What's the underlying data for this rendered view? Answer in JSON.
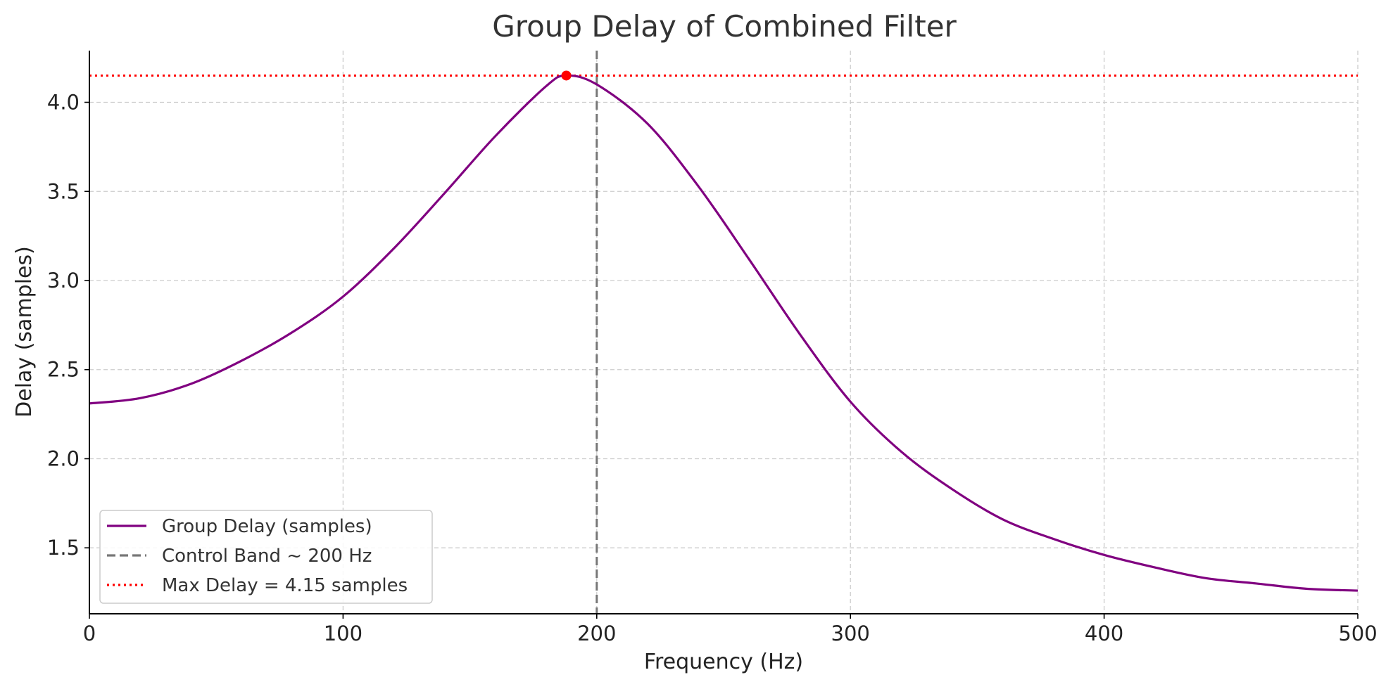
{
  "chart_data": {
    "type": "line",
    "title": "Group Delay of Combined Filter",
    "xlabel": "Frequency (Hz)",
    "ylabel": "Delay (samples)",
    "xlim": [
      0,
      500
    ],
    "ylim": [
      1.13,
      4.29
    ],
    "xticks": [
      0,
      100,
      200,
      300,
      400,
      500
    ],
    "yticks": [
      1.5,
      2.0,
      2.5,
      3.0,
      3.5,
      4.0
    ],
    "grid": true,
    "legend_position": "lower-left",
    "series": [
      {
        "name": "Group Delay (samples)",
        "color": "#800080",
        "style": "solid",
        "x": [
          0,
          20,
          40,
          60,
          80,
          100,
          120,
          140,
          160,
          180,
          188,
          200,
          220,
          240,
          260,
          280,
          300,
          320,
          340,
          360,
          380,
          400,
          420,
          440,
          460,
          480,
          500
        ],
        "y": [
          2.31,
          2.34,
          2.42,
          2.55,
          2.71,
          2.91,
          3.18,
          3.49,
          3.81,
          4.09,
          4.15,
          4.1,
          3.88,
          3.53,
          3.12,
          2.7,
          2.32,
          2.04,
          1.83,
          1.66,
          1.55,
          1.46,
          1.39,
          1.33,
          1.3,
          1.27,
          1.26
        ]
      }
    ],
    "reference_lines": [
      {
        "name": "Control Band ~ 200 Hz",
        "orientation": "vertical",
        "value": 200,
        "color": "#777777",
        "style": "dashed"
      },
      {
        "name": "Max Delay = 4.15 samples",
        "orientation": "horizontal",
        "value": 4.15,
        "color": "#ff0000",
        "style": "dotted"
      }
    ],
    "markers": [
      {
        "x": 188,
        "y": 4.15,
        "color": "#ff0000"
      }
    ]
  }
}
